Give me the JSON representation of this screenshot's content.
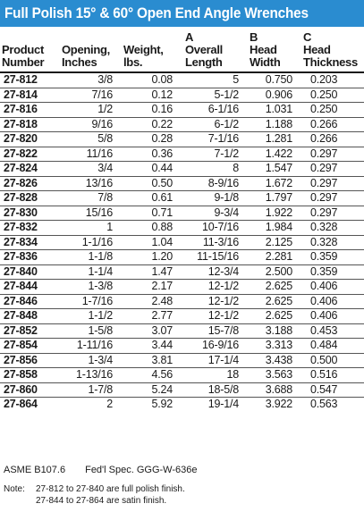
{
  "title": "Full Polish 15° & 60° Open End Angle Wrenches",
  "columns": [
    [
      "",
      "Product",
      "Number"
    ],
    [
      "",
      "Opening,",
      "Inches"
    ],
    [
      "",
      "Weight,",
      "lbs."
    ],
    [
      "A",
      "Overall",
      "Length"
    ],
    [
      "B",
      "Head",
      "Width"
    ],
    [
      "C",
      "Head",
      "Thickness"
    ]
  ],
  "rows": [
    [
      "27-812",
      "3/8",
      "0.08",
      "5",
      "0.750",
      "0.203"
    ],
    [
      "27-814",
      "7/16",
      "0.12",
      "5-1/2",
      "0.906",
      "0.250"
    ],
    [
      "27-816",
      "1/2",
      "0.16",
      "6-1/16",
      "1.031",
      "0.250"
    ],
    [
      "27-818",
      "9/16",
      "0.22",
      "6-1/2",
      "1.188",
      "0.266"
    ],
    [
      "27-820",
      "5/8",
      "0.28",
      "7-1/16",
      "1.281",
      "0.266"
    ],
    [
      "27-822",
      "11/16",
      "0.36",
      "7-1/2",
      "1.422",
      "0.297"
    ],
    [
      "27-824",
      "3/4",
      "0.44",
      "8",
      "1.547",
      "0.297"
    ],
    [
      "27-826",
      "13/16",
      "0.50",
      "8-9/16",
      "1.672",
      "0.297"
    ],
    [
      "27-828",
      "7/8",
      "0.61",
      "9-1/8",
      "1.797",
      "0.297"
    ],
    [
      "27-830",
      "15/16",
      "0.71",
      "9-3/4",
      "1.922",
      "0.297"
    ],
    [
      "27-832",
      "1",
      "0.88",
      "10-7/16",
      "1.984",
      "0.328"
    ],
    [
      "27-834",
      "1-1/16",
      "1.04",
      "11-3/16",
      "2.125",
      "0.328"
    ],
    [
      "27-836",
      "1-1/8",
      "1.20",
      "11-15/16",
      "2.281",
      "0.359"
    ],
    [
      "27-840",
      "1-1/4",
      "1.47",
      "12-3/4",
      "2.500",
      "0.359"
    ],
    [
      "27-844",
      "1-3/8",
      "2.17",
      "12-1/2",
      "2.625",
      "0.406"
    ],
    [
      "27-846",
      "1-7/16",
      "2.48",
      "12-1/2",
      "2.625",
      "0.406"
    ],
    [
      "27-848",
      "1-1/2",
      "2.77",
      "12-1/2",
      "2.625",
      "0.406"
    ],
    [
      "27-852",
      "1-5/8",
      "3.07",
      "15-7/8",
      "3.188",
      "0.453"
    ],
    [
      "27-854",
      "1-11/16",
      "3.44",
      "16-9/16",
      "3.313",
      "0.484"
    ],
    [
      "27-856",
      "1-3/4",
      "3.81",
      "17-1/4",
      "3.438",
      "0.500"
    ],
    [
      "27-858",
      "1-13/16",
      "4.56",
      "18",
      "3.563",
      "0.516"
    ],
    [
      "27-860",
      "1-7/8",
      "5.24",
      "18-5/8",
      "3.688",
      "0.547"
    ],
    [
      "27-864",
      "2",
      "5.92",
      "19-1/4",
      "3.922",
      "0.563"
    ]
  ],
  "spec": [
    "ASME B107.6",
    "Fed'l Spec. GGG-W-636e"
  ],
  "note": {
    "label": "Note:",
    "lines": [
      "27-812 to 27-840 are full polish finish.",
      "27-844 to 27-864 are satin finish."
    ]
  },
  "colors": {
    "title_bg": "#2a8cd0",
    "title_text": "#ffffff"
  }
}
